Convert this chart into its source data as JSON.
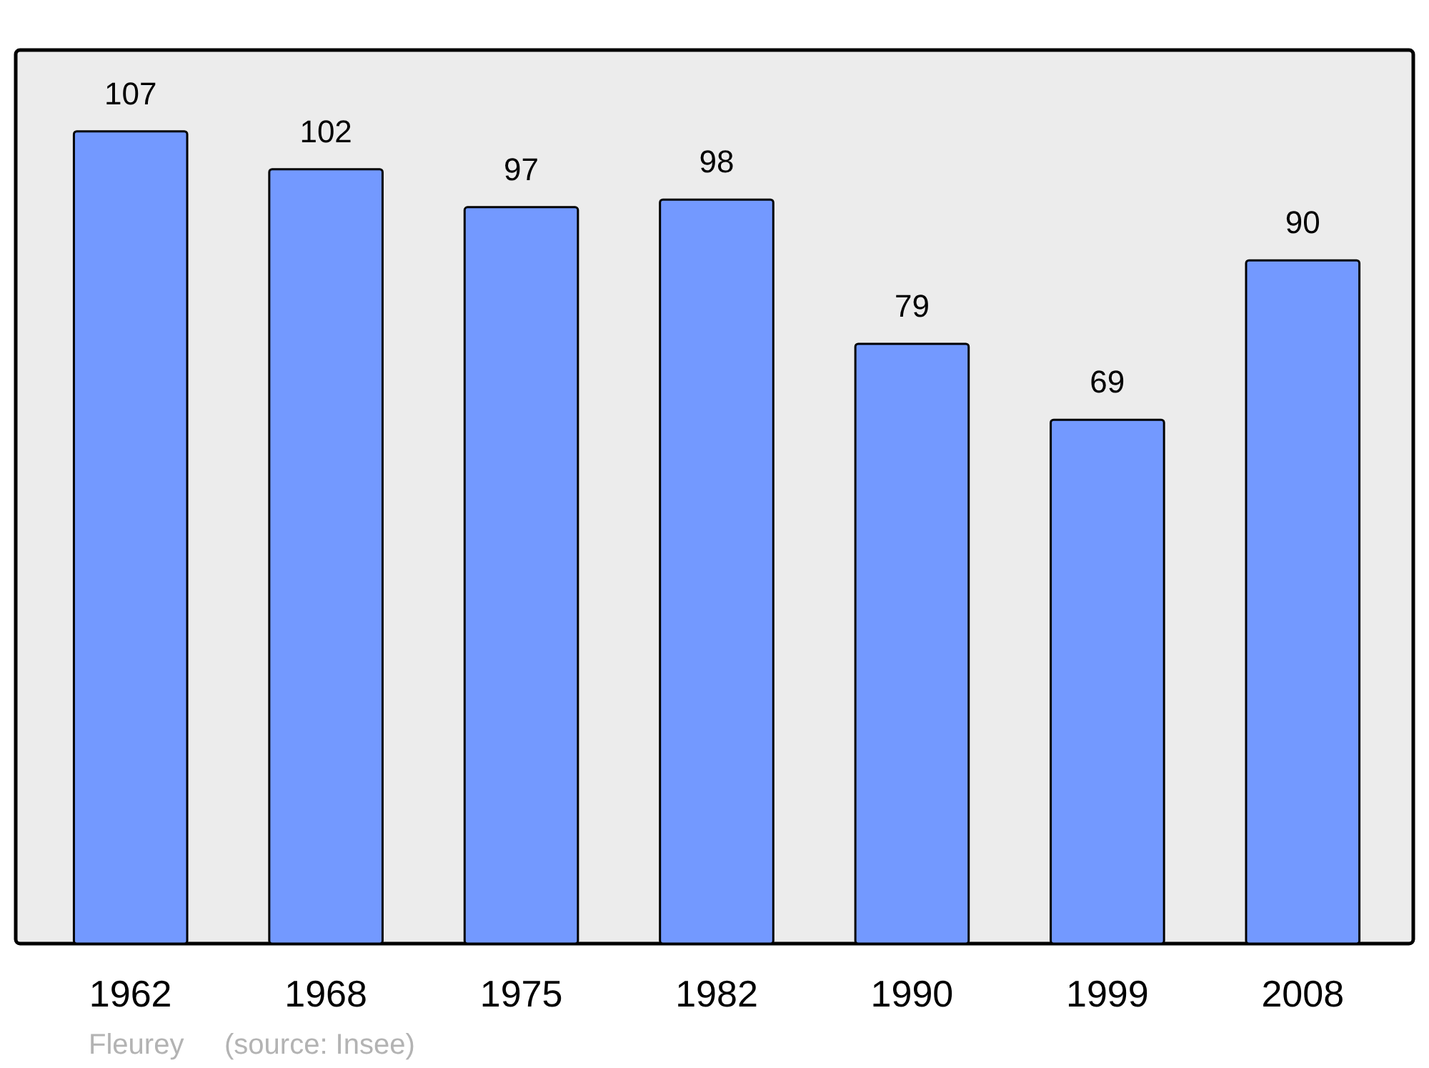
{
  "chart_data": {
    "type": "bar",
    "categories": [
      "1962",
      "1968",
      "1975",
      "1982",
      "1990",
      "1999",
      "2008"
    ],
    "values": [
      107,
      102,
      97,
      98,
      79,
      69,
      90
    ],
    "color": "#7399ff",
    "data_labels": true,
    "annotations": [
      "Fleurey",
      "(source: Insee)"
    ]
  }
}
